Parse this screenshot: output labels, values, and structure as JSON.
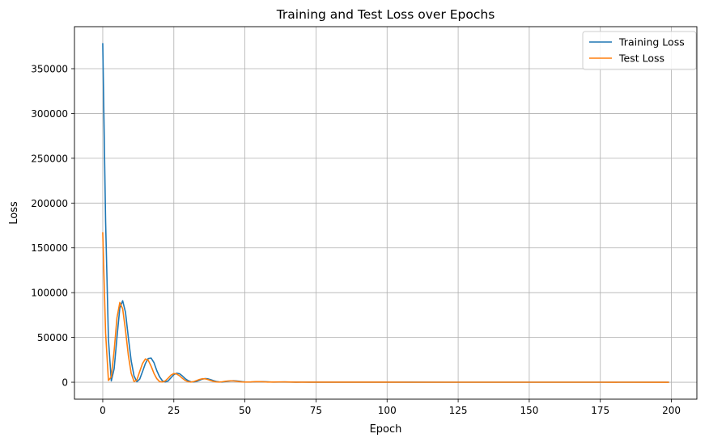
{
  "chart_data": {
    "type": "line",
    "title": "Training and Test Loss over Epochs",
    "xlabel": "Epoch",
    "ylabel": "Loss",
    "xlim": [
      -9.95,
      208.95
    ],
    "ylim": [
      -18900,
      396900
    ],
    "xticks": [
      0,
      25,
      50,
      75,
      100,
      125,
      150,
      175,
      200
    ],
    "yticks": [
      0,
      50000,
      100000,
      150000,
      200000,
      250000,
      300000,
      350000
    ],
    "grid": true,
    "legend_position": "top-right",
    "series": [
      {
        "name": "Training Loss",
        "color": "#1f77b4",
        "points": [
          [
            0,
            378000
          ],
          [
            1,
            180000
          ],
          [
            2,
            48000
          ],
          [
            3,
            1500
          ],
          [
            4,
            15000
          ],
          [
            5,
            50000
          ],
          [
            6,
            83000
          ],
          [
            7,
            91000
          ],
          [
            8,
            78000
          ],
          [
            9,
            50000
          ],
          [
            10,
            24000
          ],
          [
            11,
            7000
          ],
          [
            12,
            600
          ],
          [
            13,
            3500
          ],
          [
            14,
            12000
          ],
          [
            15,
            21000
          ],
          [
            16,
            26500
          ],
          [
            17,
            27000
          ],
          [
            18,
            22000
          ],
          [
            19,
            13000
          ],
          [
            20,
            6000
          ],
          [
            21,
            1500
          ],
          [
            22,
            300
          ],
          [
            23,
            1500
          ],
          [
            24,
            5000
          ],
          [
            25,
            8500
          ],
          [
            26,
            10000
          ],
          [
            27,
            9500
          ],
          [
            28,
            7000
          ],
          [
            29,
            4000
          ],
          [
            30,
            1800
          ],
          [
            31,
            500
          ],
          [
            32,
            300
          ],
          [
            33,
            900
          ],
          [
            34,
            2200
          ],
          [
            35,
            3500
          ],
          [
            36,
            4100
          ],
          [
            37,
            3800
          ],
          [
            38,
            2800
          ],
          [
            39,
            1700
          ],
          [
            40,
            800
          ],
          [
            41,
            300
          ],
          [
            42,
            250
          ],
          [
            43,
            600
          ],
          [
            44,
            1100
          ],
          [
            45,
            1500
          ],
          [
            46,
            1650
          ],
          [
            47,
            1500
          ],
          [
            48,
            1100
          ],
          [
            49,
            650
          ],
          [
            50,
            300
          ],
          [
            52,
            200
          ],
          [
            54,
            500
          ],
          [
            56,
            700
          ],
          [
            58,
            450
          ],
          [
            60,
            150
          ],
          [
            62,
            250
          ],
          [
            64,
            350
          ],
          [
            66,
            250
          ],
          [
            68,
            120
          ],
          [
            70,
            150
          ],
          [
            75,
            120
          ],
          [
            80,
            100
          ],
          [
            90,
            80
          ],
          [
            100,
            60
          ],
          [
            120,
            50
          ],
          [
            150,
            40
          ],
          [
            175,
            30
          ],
          [
            199,
            30
          ]
        ]
      },
      {
        "name": "Test Loss",
        "color": "#ff7f0e",
        "points": [
          [
            0,
            167000
          ],
          [
            1,
            55000
          ],
          [
            2,
            2000
          ],
          [
            3,
            6000
          ],
          [
            4,
            35000
          ],
          [
            5,
            72000
          ],
          [
            6,
            89000
          ],
          [
            7,
            82000
          ],
          [
            8,
            58000
          ],
          [
            9,
            30000
          ],
          [
            10,
            10000
          ],
          [
            11,
            800
          ],
          [
            12,
            2500
          ],
          [
            13,
            12000
          ],
          [
            14,
            21000
          ],
          [
            15,
            26000
          ],
          [
            16,
            24500
          ],
          [
            17,
            18000
          ],
          [
            18,
            10000
          ],
          [
            19,
            4000
          ],
          [
            20,
            700
          ],
          [
            21,
            300
          ],
          [
            22,
            1500
          ],
          [
            23,
            4500
          ],
          [
            24,
            8000
          ],
          [
            25,
            9700
          ],
          [
            26,
            9200
          ],
          [
            27,
            7200
          ],
          [
            28,
            4400
          ],
          [
            29,
            2000
          ],
          [
            30,
            600
          ],
          [
            31,
            200
          ],
          [
            32,
            700
          ],
          [
            33,
            1900
          ],
          [
            34,
            3100
          ],
          [
            35,
            3900
          ],
          [
            36,
            3800
          ],
          [
            37,
            3000
          ],
          [
            38,
            1900
          ],
          [
            39,
            900
          ],
          [
            40,
            300
          ],
          [
            41,
            200
          ],
          [
            42,
            500
          ],
          [
            43,
            1000
          ],
          [
            44,
            1400
          ],
          [
            45,
            1600
          ],
          [
            46,
            1500
          ],
          [
            47,
            1100
          ],
          [
            48,
            700
          ],
          [
            49,
            350
          ],
          [
            50,
            200
          ],
          [
            52,
            350
          ],
          [
            54,
            650
          ],
          [
            56,
            550
          ],
          [
            58,
            250
          ],
          [
            60,
            200
          ],
          [
            62,
            300
          ],
          [
            64,
            300
          ],
          [
            66,
            180
          ],
          [
            68,
            120
          ],
          [
            70,
            140
          ],
          [
            75,
            110
          ],
          [
            80,
            90
          ],
          [
            90,
            70
          ],
          [
            100,
            55
          ],
          [
            120,
            45
          ],
          [
            150,
            35
          ],
          [
            175,
            28
          ],
          [
            199,
            25
          ]
        ]
      }
    ]
  }
}
